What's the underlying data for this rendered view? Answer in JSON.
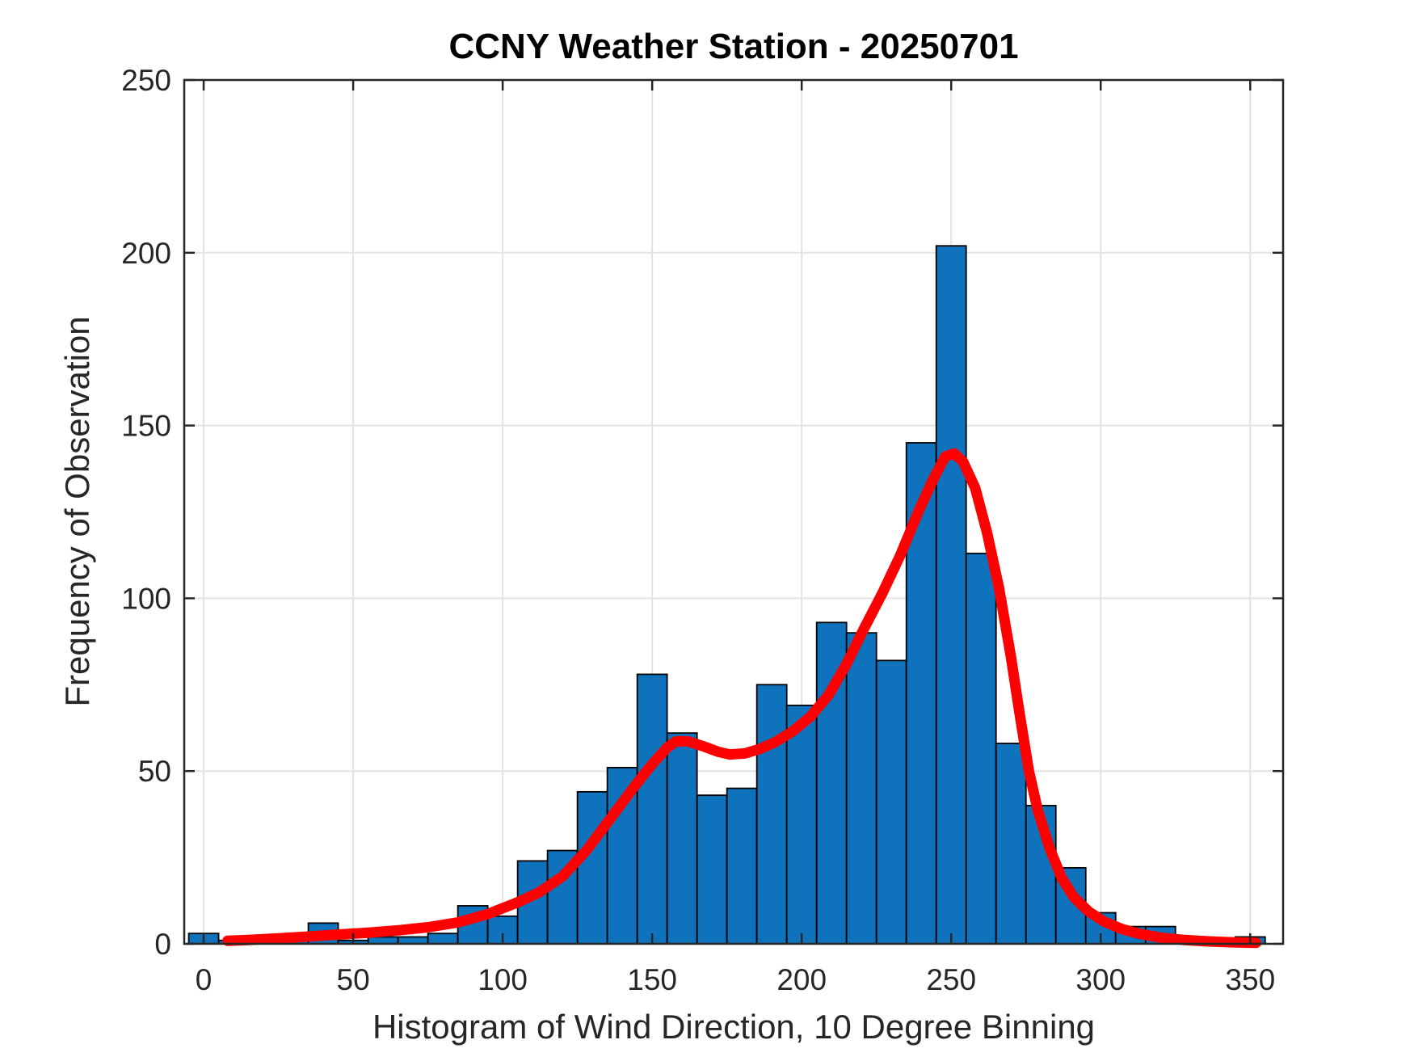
{
  "figure": {
    "title": "CCNY Weather Station - 20250701",
    "xlabel": "Histogram of Wind Direction, 10 Degree Binning",
    "ylabel": "Frequency of Observation"
  },
  "chart_data": {
    "type": "bar",
    "subtype": "histogram-with-density-fit",
    "title": "CCNY Weather Station - 20250701",
    "xlabel": "Histogram of Wind Direction, 10 Degree Binning",
    "ylabel": "Frequency of Observation",
    "bin_width_degrees": 10,
    "bin_centers": [
      0,
      10,
      20,
      30,
      40,
      50,
      60,
      70,
      80,
      90,
      100,
      110,
      120,
      130,
      140,
      150,
      160,
      170,
      180,
      190,
      200,
      210,
      220,
      230,
      240,
      250,
      260,
      270,
      280,
      290,
      300,
      310,
      320,
      330,
      340,
      350
    ],
    "counts": [
      3,
      1,
      1,
      2,
      6,
      1,
      2,
      2,
      3,
      11,
      8,
      24,
      27,
      44,
      51,
      78,
      61,
      43,
      45,
      75,
      69,
      93,
      90,
      82,
      145,
      202,
      113,
      58,
      40,
      22,
      9,
      5,
      5,
      2,
      1,
      2
    ],
    "xticks": [
      0,
      50,
      100,
      150,
      200,
      250,
      300,
      350
    ],
    "yticks": [
      0,
      50,
      100,
      150,
      200,
      250
    ],
    "xlim": [
      -6.5,
      361
    ],
    "ylim": [
      0,
      250
    ],
    "grid": true,
    "legend": "none",
    "bar_color": "#0f72bd",
    "bar_edge_color": "#000000",
    "grid_color": "#e3e3e3",
    "axis_color": "#262626",
    "fit_curve": {
      "name": "density-fit-line",
      "color": "#ff0000",
      "peaks": [
        [
          158,
          58.6
        ],
        [
          249,
          142
        ]
      ],
      "points": [
        [
          8,
          0.9
        ],
        [
          15,
          1.1
        ],
        [
          25,
          1.6
        ],
        [
          35,
          2.1
        ],
        [
          45,
          2.7
        ],
        [
          55,
          3.2
        ],
        [
          65,
          3.9
        ],
        [
          75,
          4.8
        ],
        [
          85,
          6.2
        ],
        [
          95,
          8.6
        ],
        [
          105,
          12
        ],
        [
          112,
          14.8
        ],
        [
          120,
          19.5
        ],
        [
          128,
          27
        ],
        [
          136,
          36.2
        ],
        [
          144,
          45.5
        ],
        [
          150,
          52
        ],
        [
          155,
          56.8
        ],
        [
          158,
          58.6
        ],
        [
          162,
          58.6
        ],
        [
          167,
          57.2
        ],
        [
          172,
          55.6
        ],
        [
          176,
          54.8
        ],
        [
          181,
          55.1
        ],
        [
          186,
          56.4
        ],
        [
          191,
          58.3
        ],
        [
          197,
          61.5
        ],
        [
          203,
          65.8
        ],
        [
          209,
          72
        ],
        [
          215,
          81
        ],
        [
          221,
          91.5
        ],
        [
          227,
          101.5
        ],
        [
          233,
          112.5
        ],
        [
          239,
          125
        ],
        [
          244,
          134.5
        ],
        [
          248,
          141
        ],
        [
          251,
          141.9
        ],
        [
          254,
          139.5
        ],
        [
          258,
          132
        ],
        [
          262,
          119
        ],
        [
          266,
          103
        ],
        [
          270,
          83
        ],
        [
          273,
          66
        ],
        [
          276,
          50
        ],
        [
          279,
          38.5
        ],
        [
          283,
          27.5
        ],
        [
          287,
          19
        ],
        [
          291,
          13.5
        ],
        [
          296,
          9.3
        ],
        [
          301,
          6.5
        ],
        [
          307,
          4.3
        ],
        [
          313,
          2.9
        ],
        [
          320,
          1.8
        ],
        [
          328,
          1.1
        ],
        [
          336,
          0.7
        ],
        [
          344,
          0.45
        ],
        [
          352,
          0.3
        ]
      ]
    }
  }
}
